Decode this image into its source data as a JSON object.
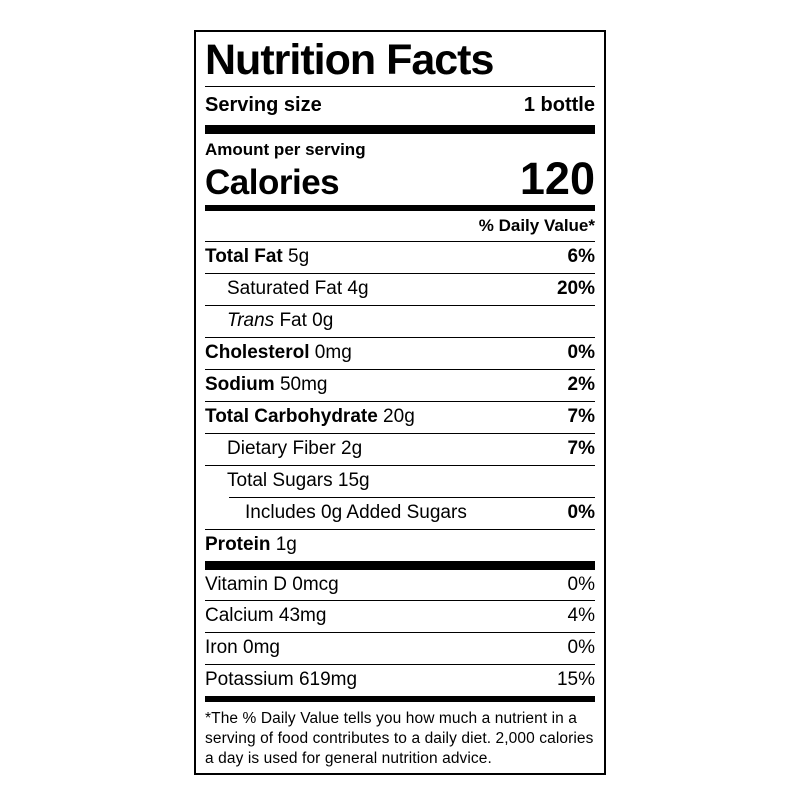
{
  "colors": {
    "label_foreground": "#000000",
    "label_background": "#ffffff"
  },
  "label": {
    "title": "Nutrition Facts",
    "serving_size_label": "Serving size",
    "serving_size_value": "1 bottle",
    "amount_per_serving": "Amount per serving",
    "calories_label": "Calories",
    "calories_value": "120",
    "daily_value_header": "% Daily Value*",
    "nutrient_rows": [
      {
        "name": "Total Fat",
        "amount": " 5g",
        "pct": "6%"
      },
      {
        "name": "Saturated Fat 4g",
        "pct": "20%"
      },
      {
        "name_italic": "Trans",
        "name_rest": " Fat 0g",
        "pct": ""
      },
      {
        "name": "Cholesterol",
        "amount": " 0mg",
        "pct": "0%"
      },
      {
        "name": "Sodium",
        "amount": " 50mg",
        "pct": "2%"
      },
      {
        "name": "Total Carbohydrate",
        "amount": " 20g",
        "pct": "7%"
      },
      {
        "name": "Dietary Fiber 2g",
        "pct": "7%"
      },
      {
        "name": "Total Sugars 15g",
        "pct": ""
      },
      {
        "name": "Includes 0g Added Sugars",
        "pct": "0%"
      },
      {
        "name": "Protein",
        "amount": " 1g",
        "pct": ""
      }
    ],
    "vitamin_rows": [
      {
        "name": "Vitamin D 0mcg",
        "pct": "0%"
      },
      {
        "name": "Calcium 43mg",
        "pct": "4%"
      },
      {
        "name": "Iron 0mg",
        "pct": "0%"
      },
      {
        "name": "Potassium 619mg",
        "pct": "15%"
      }
    ],
    "footnote": "*The % Daily Value tells you how much a nutrient in a serving of food contributes to a daily diet. 2,000 calories a day is used for general nutrition advice."
  }
}
